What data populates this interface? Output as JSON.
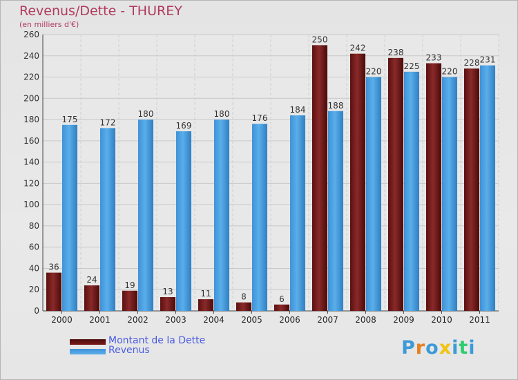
{
  "title": "Revenus/Dette - THUREY",
  "subtitle": "(en milliers d'€)",
  "logo": {
    "text": "Proxiti",
    "colors": [
      "#3d9ad9",
      "#e67e22",
      "#3d9ad9",
      "#f1c40f",
      "#3d9ad9",
      "#2ecc71",
      "#3d9ad9"
    ]
  },
  "chart_data": {
    "type": "bar",
    "categories": [
      "2000",
      "2001",
      "2002",
      "2003",
      "2004",
      "2005",
      "2006",
      "2007",
      "2008",
      "2009",
      "2010",
      "2011"
    ],
    "series": [
      {
        "name": "Montant de la Dette",
        "color": "#6e1414",
        "values": [
          36,
          24,
          19,
          13,
          11,
          8,
          6,
          250,
          242,
          238,
          233,
          228
        ]
      },
      {
        "name": "Revenus",
        "color": "#4fa3e3",
        "values": [
          175,
          172,
          180,
          169,
          180,
          176,
          184,
          188,
          220,
          225,
          220,
          231
        ]
      }
    ],
    "ylim": [
      0,
      260
    ],
    "yticks": [
      0,
      20,
      40,
      60,
      80,
      100,
      120,
      140,
      160,
      180,
      200,
      220,
      240,
      260
    ],
    "grid": true,
    "legend_position": "bottom-left"
  }
}
